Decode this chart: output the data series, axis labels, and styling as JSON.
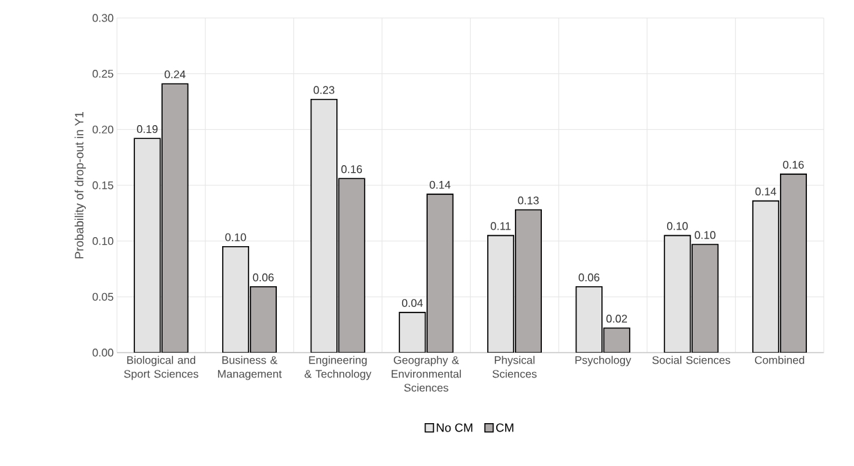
{
  "chart_data": {
    "type": "bar",
    "categories": [
      "Biological and Sport Sciences",
      "Business & Management",
      "Engineering & Technology",
      "Geography & Environmental Sciences",
      "Physical Sciences",
      "Psychology",
      "Social Sciences",
      "Combined"
    ],
    "ylabel": "Probability of drop-out in Y1",
    "ylim": [
      0,
      0.3
    ],
    "yticks": [
      {
        "value": 0,
        "label": "0.00"
      },
      {
        "value": 0.05,
        "label": "0.05"
      },
      {
        "value": 0.1,
        "label": "0.10"
      },
      {
        "value": 0.15,
        "label": "0.15"
      },
      {
        "value": 0.2,
        "label": "0.20"
      },
      {
        "value": 0.25,
        "label": "0.25"
      },
      {
        "value": 0.3,
        "label": "0.30"
      }
    ],
    "series": [
      {
        "name": "No CM",
        "color": "#e3e3e3",
        "values": [
          0.192,
          0.095,
          0.227,
          0.036,
          0.105,
          0.059,
          0.105,
          0.136
        ],
        "value_labels": [
          "0.19",
          "0.10",
          "0.23",
          "0.04",
          "0.11",
          "0.06",
          "0.10",
          "0.14"
        ]
      },
      {
        "name": "CM",
        "color": "#aeaaaa",
        "values": [
          0.241,
          0.059,
          0.156,
          0.142,
          0.128,
          0.022,
          0.097,
          0.16
        ],
        "value_labels": [
          "0.24",
          "0.06",
          "0.16",
          "0.14",
          "0.13",
          "0.02",
          "0.10",
          "0.16"
        ]
      }
    ],
    "grid": true,
    "legend": "bottom"
  }
}
